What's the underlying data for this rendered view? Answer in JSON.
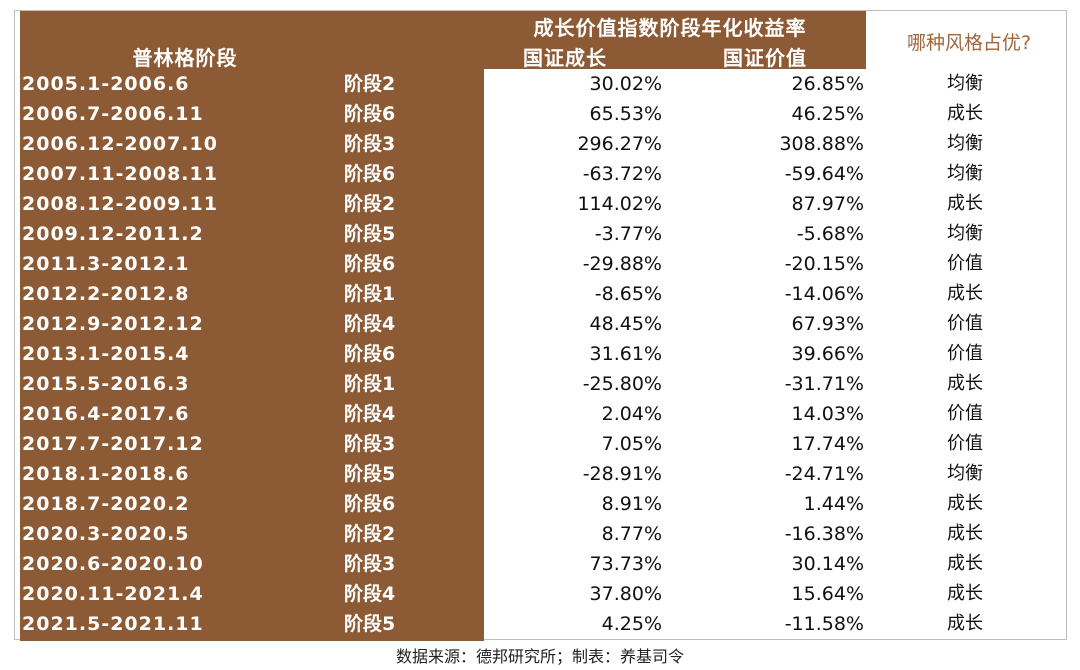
{
  "header": {
    "period_col": "普林格阶段",
    "returns_title": "成长价值指数阶段年化收益率",
    "growth_col": "国证成长",
    "value_col": "国证价值",
    "winner_col": "哪种风格占优?"
  },
  "rows": [
    {
      "period": "2005.1-2006.6",
      "stage": "阶段2",
      "growth": "30.02%",
      "value": "26.85%",
      "winner": "均衡"
    },
    {
      "period": "2006.7-2006.11",
      "stage": "阶段6",
      "growth": "65.53%",
      "value": "46.25%",
      "winner": "成长"
    },
    {
      "period": "2006.12-2007.10",
      "stage": "阶段3",
      "growth": "296.27%",
      "value": "308.88%",
      "winner": "均衡"
    },
    {
      "period": "2007.11-2008.11",
      "stage": "阶段6",
      "growth": "-63.72%",
      "value": "-59.64%",
      "winner": "均衡"
    },
    {
      "period": "2008.12-2009.11",
      "stage": "阶段2",
      "growth": "114.02%",
      "value": "87.97%",
      "winner": "成长"
    },
    {
      "period": "2009.12-2011.2",
      "stage": "阶段5",
      "growth": "-3.77%",
      "value": "-5.68%",
      "winner": "均衡"
    },
    {
      "period": "2011.3-2012.1",
      "stage": "阶段6",
      "growth": "-29.88%",
      "value": "-20.15%",
      "winner": "价值"
    },
    {
      "period": "2012.2-2012.8",
      "stage": "阶段1",
      "growth": "-8.65%",
      "value": "-14.06%",
      "winner": "成长"
    },
    {
      "period": "2012.9-2012.12",
      "stage": "阶段4",
      "growth": "48.45%",
      "value": "67.93%",
      "winner": "价值"
    },
    {
      "period": "2013.1-2015.4",
      "stage": "阶段6",
      "growth": "31.61%",
      "value": "39.66%",
      "winner": "价值"
    },
    {
      "period": "2015.5-2016.3",
      "stage": "阶段1",
      "growth": "-25.80%",
      "value": "-31.71%",
      "winner": "成长"
    },
    {
      "period": "2016.4-2017.6",
      "stage": "阶段4",
      "growth": "2.04%",
      "value": "14.03%",
      "winner": "价值"
    },
    {
      "period": "2017.7-2017.12",
      "stage": "阶段3",
      "growth": "7.05%",
      "value": "17.74%",
      "winner": "价值"
    },
    {
      "period": "2018.1-2018.6",
      "stage": "阶段5",
      "growth": "-28.91%",
      "value": "-24.71%",
      "winner": "均衡"
    },
    {
      "period": "2018.7-2020.2",
      "stage": "阶段6",
      "growth": "8.91%",
      "value": "1.44%",
      "winner": "成长"
    },
    {
      "period": "2020.3-2020.5",
      "stage": "阶段2",
      "growth": "8.77%",
      "value": "-16.38%",
      "winner": "成长"
    },
    {
      "period": "2020.6-2020.10",
      "stage": "阶段3",
      "growth": "73.73%",
      "value": "30.14%",
      "winner": "成长"
    },
    {
      "period": "2020.11-2021.4",
      "stage": "阶段4",
      "growth": "37.80%",
      "value": "15.64%",
      "winner": "成长"
    },
    {
      "period": "2021.5-2021.11",
      "stage": "阶段5",
      "growth": "4.25%",
      "value": "-11.58%",
      "winner": "成长"
    }
  ],
  "footer": "数据来源：德邦研究所；制表：养基司令",
  "colors": {
    "brown": "#8c5a35",
    "winner_header": "#a0663a"
  }
}
